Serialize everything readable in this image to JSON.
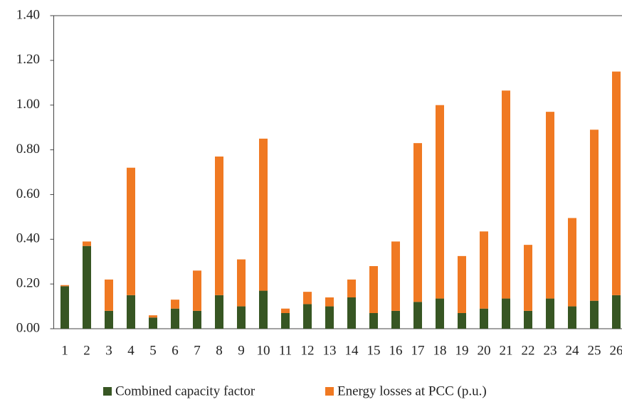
{
  "chart_data": {
    "type": "stacked-bar",
    "categories": [
      "1",
      "2",
      "3",
      "4",
      "5",
      "6",
      "7",
      "8",
      "9",
      "10",
      "11",
      "12",
      "13",
      "14",
      "15",
      "16",
      "17",
      "18",
      "19",
      "20",
      "21",
      "22",
      "23",
      "24",
      "25",
      "26"
    ],
    "series": [
      {
        "name": "Combined capacity factor",
        "color": "#375623",
        "values": [
          0.19,
          0.37,
          0.08,
          0.15,
          0.05,
          0.09,
          0.08,
          0.15,
          0.1,
          0.17,
          0.07,
          0.11,
          0.1,
          0.14,
          0.07,
          0.08,
          0.12,
          0.135,
          0.07,
          0.09,
          0.135,
          0.08,
          0.135,
          0.1,
          0.125,
          0.15
        ]
      },
      {
        "name": "Energy losses at PCC (p.u.)",
        "color": "#f07922",
        "values": [
          0.005,
          0.02,
          0.14,
          0.57,
          0.01,
          0.04,
          0.18,
          0.62,
          0.21,
          0.68,
          0.02,
          0.055,
          0.04,
          0.08,
          0.21,
          0.31,
          0.71,
          0.865,
          0.255,
          0.345,
          0.93,
          0.295,
          0.835,
          0.395,
          0.765,
          1.0
        ]
      }
    ],
    "ylim": [
      0,
      1.4
    ],
    "yticks": [
      {
        "value": 0,
        "label": "0.00"
      },
      {
        "value": 0.2,
        "label": "0.20"
      },
      {
        "value": 0.4,
        "label": "0.40"
      },
      {
        "value": 0.6,
        "label": "0.60"
      },
      {
        "value": 0.8,
        "label": "0.80"
      },
      {
        "value": 1.0,
        "label": "1.00"
      },
      {
        "value": 1.2,
        "label": "1.20"
      },
      {
        "value": 1.4,
        "label": "1.40"
      }
    ],
    "legend": "bottom"
  }
}
